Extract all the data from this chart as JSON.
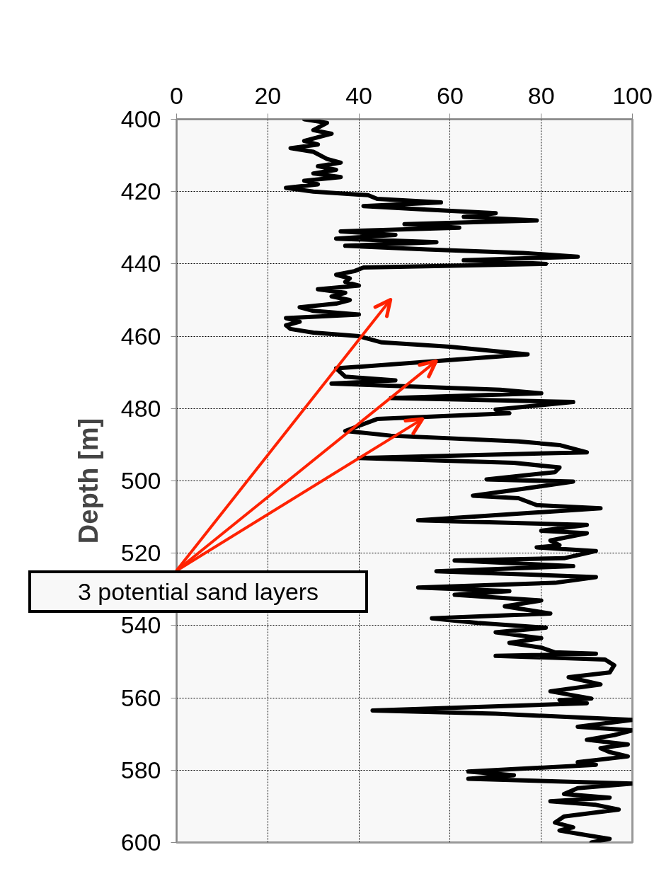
{
  "chart_data": {
    "type": "line",
    "ylabel": "Depth [m]",
    "xlim": [
      0,
      100
    ],
    "xticks": [
      0,
      20,
      40,
      60,
      80,
      100
    ],
    "ylim": [
      600,
      400
    ],
    "yticks": [
      400,
      420,
      440,
      460,
      480,
      500,
      520,
      540,
      560,
      580,
      600
    ],
    "grid": true,
    "marker": "none",
    "line_style": "solid",
    "annotations": [
      "3 potential sand layers"
    ],
    "series": [
      {
        "color": "#000000",
        "x": [
          28,
          33,
          30,
          34,
          28,
          31,
          25,
          30,
          33,
          36,
          31,
          35,
          30,
          36,
          28,
          31,
          24,
          30,
          42,
          44,
          58,
          41,
          55,
          70,
          63,
          79,
          50,
          62,
          36,
          48,
          35,
          57,
          37,
          55,
          76,
          88,
          63,
          81,
          41,
          39,
          35,
          38,
          37,
          40,
          31,
          37,
          34,
          38,
          35,
          27,
          30,
          40,
          24,
          27,
          24,
          25,
          30,
          40,
          45,
          60,
          77,
          60,
          35,
          37,
          48,
          34,
          71,
          80,
          47,
          87,
          70,
          73,
          44,
          37,
          47,
          75,
          84,
          90,
          40,
          74,
          84,
          83,
          68,
          87,
          76,
          65,
          75,
          79,
          93,
          53,
          90,
          80,
          90,
          82,
          84,
          79,
          92,
          85,
          61,
          87,
          57,
          92,
          83,
          53,
          73,
          61,
          80,
          72,
          82,
          56,
          66,
          81,
          70,
          80,
          73,
          80,
          83,
          92,
          70,
          94,
          96,
          95,
          86,
          93,
          82,
          91,
          84,
          90,
          43,
          70,
          100,
          88,
          100,
          96,
          90,
          99,
          93,
          95,
          99,
          88,
          92,
          64,
          74,
          64,
          100,
          88,
          85,
          95,
          82,
          92,
          97,
          85,
          83,
          87,
          84,
          90,
          95,
          91
        ],
        "values": [
          400,
          401,
          403,
          404,
          406,
          407,
          408,
          409,
          411,
          412,
          413,
          414,
          415,
          416,
          417,
          418,
          419,
          420,
          421,
          422,
          423,
          424,
          425,
          426,
          427,
          428,
          429,
          430,
          431,
          432,
          433,
          434,
          435,
          436,
          437,
          438,
          439,
          440,
          441,
          442,
          443,
          444,
          445,
          446,
          447,
          448,
          449,
          450,
          451,
          452,
          453,
          454,
          455,
          456,
          457,
          458,
          459,
          460,
          461.7,
          462.9,
          465,
          466.6,
          468.9,
          471.2,
          472.2,
          473.1,
          474.8,
          475.8,
          477.1,
          478.2,
          480.3,
          481.3,
          482.9,
          486.2,
          487.5,
          489.1,
          490.1,
          492.1,
          493.7,
          495,
          496.3,
          497.6,
          499.6,
          500.2,
          502.2,
          504.1,
          504.8,
          506.7,
          507.6,
          510.9,
          512.2,
          513.8,
          514.5,
          516.5,
          517.8,
          518.4,
          519.4,
          521.4,
          522,
          523.6,
          525,
          526.6,
          528.2,
          529.5,
          530.5,
          531.5,
          533.1,
          534.7,
          536.7,
          538,
          539.3,
          540.6,
          541.9,
          543.5,
          544.8,
          546.1,
          547.4,
          547.8,
          548.4,
          549.4,
          551,
          553,
          554.3,
          556.3,
          558.2,
          560.2,
          560.6,
          561.5,
          563.5,
          564.4,
          566.1,
          568,
          569,
          570.3,
          571.6,
          572.9,
          573.9,
          575,
          576.2,
          577.8,
          578.5,
          580.4,
          581.4,
          582.4,
          583.7,
          585,
          586.6,
          587.6,
          588.6,
          589.6,
          590.9,
          592.8,
          594.5,
          595.8,
          596.7,
          598,
          599,
          600
        ]
      }
    ]
  }
}
